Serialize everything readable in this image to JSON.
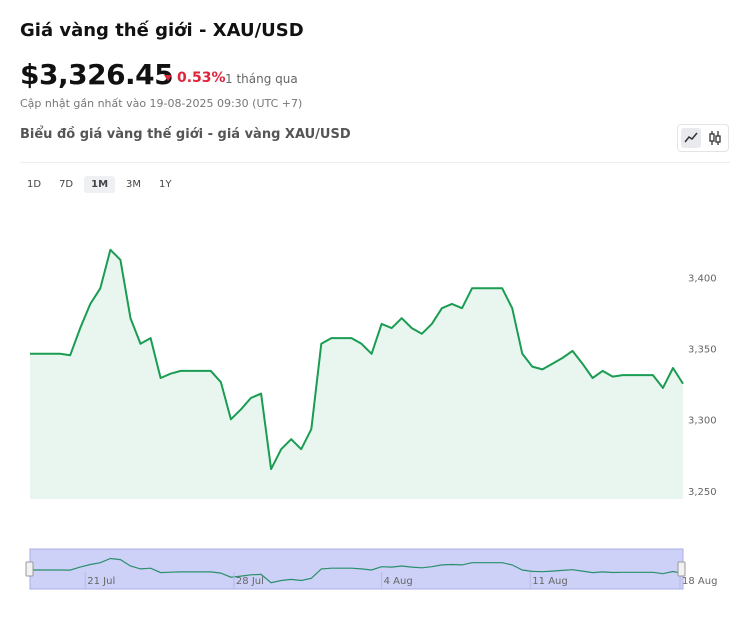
{
  "header": {
    "title": "Giá vàng thế giới - XAU/USD",
    "price": "$3,326.45",
    "change": "0.53%",
    "period": "1 tháng qua",
    "updated": "Cập nhật gần nhất vào 19-08-2025 09:30 (UTC +7)"
  },
  "chart_heading": "Biểu đồ giá vàng thế giới - giá vàng XAU/USD",
  "ranges": [
    "1D",
    "7D",
    "1M",
    "3M",
    "1Y"
  ],
  "active_range": "1M",
  "chart_data": {
    "type": "area",
    "color": "#1a9c52",
    "fill": "#e9f6ef",
    "values": [
      3347,
      3347,
      3347,
      3347,
      3346,
      3365,
      3382,
      3393,
      3420,
      3413,
      3372,
      3354,
      3358,
      3330,
      3333,
      3335,
      3335,
      3335,
      3335,
      3327,
      3301,
      3308,
      3316,
      3319,
      3266,
      3280,
      3287,
      3280,
      3294,
      3354,
      3358,
      3358,
      3358,
      3354,
      3347,
      3368,
      3365,
      3372,
      3365,
      3361,
      3368,
      3379,
      3382,
      3379,
      3393,
      3393,
      3393,
      3393,
      3379,
      3347,
      3338,
      3336,
      3340,
      3344,
      3349,
      3340,
      3330,
      3335,
      3331,
      3332,
      3332,
      3332,
      3332,
      3323,
      3337,
      3326
    ],
    "ylim": [
      3245,
      3455
    ],
    "yticks": [
      {
        "value": 3250,
        "label": "3,250"
      },
      {
        "value": 3300,
        "label": "3,300"
      },
      {
        "value": 3350,
        "label": "3,350"
      },
      {
        "value": 3400,
        "label": "3,400"
      }
    ],
    "xticks": [
      {
        "value": 5.5,
        "label": "21 Jul"
      },
      {
        "value": 20.3,
        "label": "28 Jul"
      },
      {
        "value": 35,
        "label": "4 Aug"
      },
      {
        "value": 49.8,
        "label": "11 Aug"
      },
      {
        "value": 64.7,
        "label": "18 Aug"
      }
    ]
  }
}
